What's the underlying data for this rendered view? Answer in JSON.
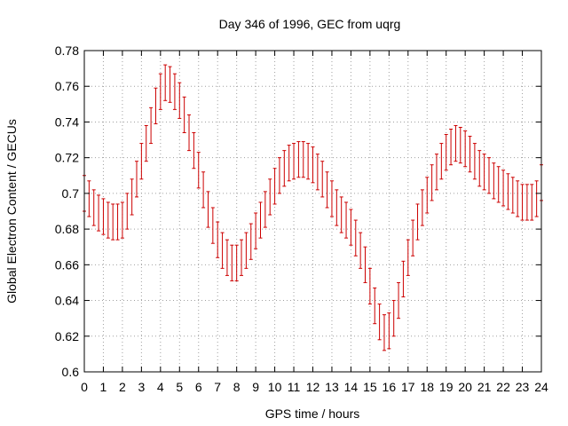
{
  "chart_data": {
    "type": "scatter",
    "title": "Day 346 of 1996, GEC from uqrg",
    "xlabel": "GPS time / hours",
    "ylabel": "Global Electron Content / GECUs",
    "xlim": [
      0,
      24
    ],
    "ylim": [
      0.6,
      0.78
    ],
    "xticks": [
      0,
      1,
      2,
      3,
      4,
      5,
      6,
      7,
      8,
      9,
      10,
      11,
      12,
      13,
      14,
      15,
      16,
      17,
      18,
      19,
      20,
      21,
      22,
      23,
      24
    ],
    "xtick_labels": [
      "0",
      "1",
      "2",
      "3",
      "4",
      "5",
      "6",
      "7",
      "8",
      "9",
      "10",
      "11",
      "12",
      "13",
      "14",
      "15",
      "16",
      "17",
      "18",
      "19",
      "20",
      "21",
      "22",
      "23",
      "24"
    ],
    "yticks": [
      0.6,
      0.62,
      0.64,
      0.66,
      0.68,
      0.7,
      0.72,
      0.74,
      0.76,
      0.78
    ],
    "ytick_labels": [
      "0.6",
      "0.62",
      "0.64",
      "0.66",
      "0.68",
      "0.7",
      "0.72",
      "0.74",
      "0.76",
      "0.78"
    ],
    "grid": true,
    "error_bars": true,
    "error": 0.01,
    "color": "#cc0000",
    "x": [
      0,
      0.25,
      0.5,
      0.75,
      1,
      1.25,
      1.5,
      1.75,
      2,
      2.25,
      2.5,
      2.75,
      3,
      3.25,
      3.5,
      3.75,
      4,
      4.25,
      4.5,
      4.75,
      5,
      5.25,
      5.5,
      5.75,
      6,
      6.25,
      6.5,
      6.75,
      7,
      7.25,
      7.5,
      7.75,
      8,
      8.25,
      8.5,
      8.75,
      9,
      9.25,
      9.5,
      9.75,
      10,
      10.25,
      10.5,
      10.75,
      11,
      11.25,
      11.5,
      11.75,
      12,
      12.25,
      12.5,
      12.75,
      13,
      13.25,
      13.5,
      13.75,
      14,
      14.25,
      14.5,
      14.75,
      15,
      15.25,
      15.5,
      15.75,
      16,
      16.25,
      16.5,
      16.75,
      17,
      17.25,
      17.5,
      17.75,
      18,
      18.25,
      18.5,
      18.75,
      19,
      19.25,
      19.5,
      19.75,
      20,
      20.25,
      20.5,
      20.75,
      21,
      21.25,
      21.5,
      21.75,
      22,
      22.25,
      22.5,
      22.75,
      23,
      23.25,
      23.5,
      23.75,
      24
    ],
    "y": [
      0.7,
      0.697,
      0.692,
      0.689,
      0.687,
      0.685,
      0.684,
      0.684,
      0.685,
      0.69,
      0.698,
      0.708,
      0.718,
      0.728,
      0.738,
      0.749,
      0.757,
      0.762,
      0.761,
      0.757,
      0.752,
      0.744,
      0.734,
      0.724,
      0.713,
      0.702,
      0.691,
      0.682,
      0.674,
      0.668,
      0.664,
      0.661,
      0.661,
      0.664,
      0.668,
      0.673,
      0.679,
      0.685,
      0.691,
      0.698,
      0.704,
      0.71,
      0.714,
      0.717,
      0.718,
      0.719,
      0.719,
      0.718,
      0.716,
      0.712,
      0.708,
      0.702,
      0.697,
      0.692,
      0.688,
      0.685,
      0.681,
      0.675,
      0.668,
      0.66,
      0.648,
      0.637,
      0.628,
      0.622,
      0.623,
      0.63,
      0.64,
      0.652,
      0.664,
      0.675,
      0.684,
      0.692,
      0.699,
      0.706,
      0.712,
      0.718,
      0.723,
      0.726,
      0.728,
      0.727,
      0.725,
      0.722,
      0.718,
      0.714,
      0.712,
      0.71,
      0.707,
      0.705,
      0.703,
      0.701,
      0.699,
      0.697,
      0.695,
      0.695,
      0.695,
      0.697,
      0.706
    ]
  }
}
